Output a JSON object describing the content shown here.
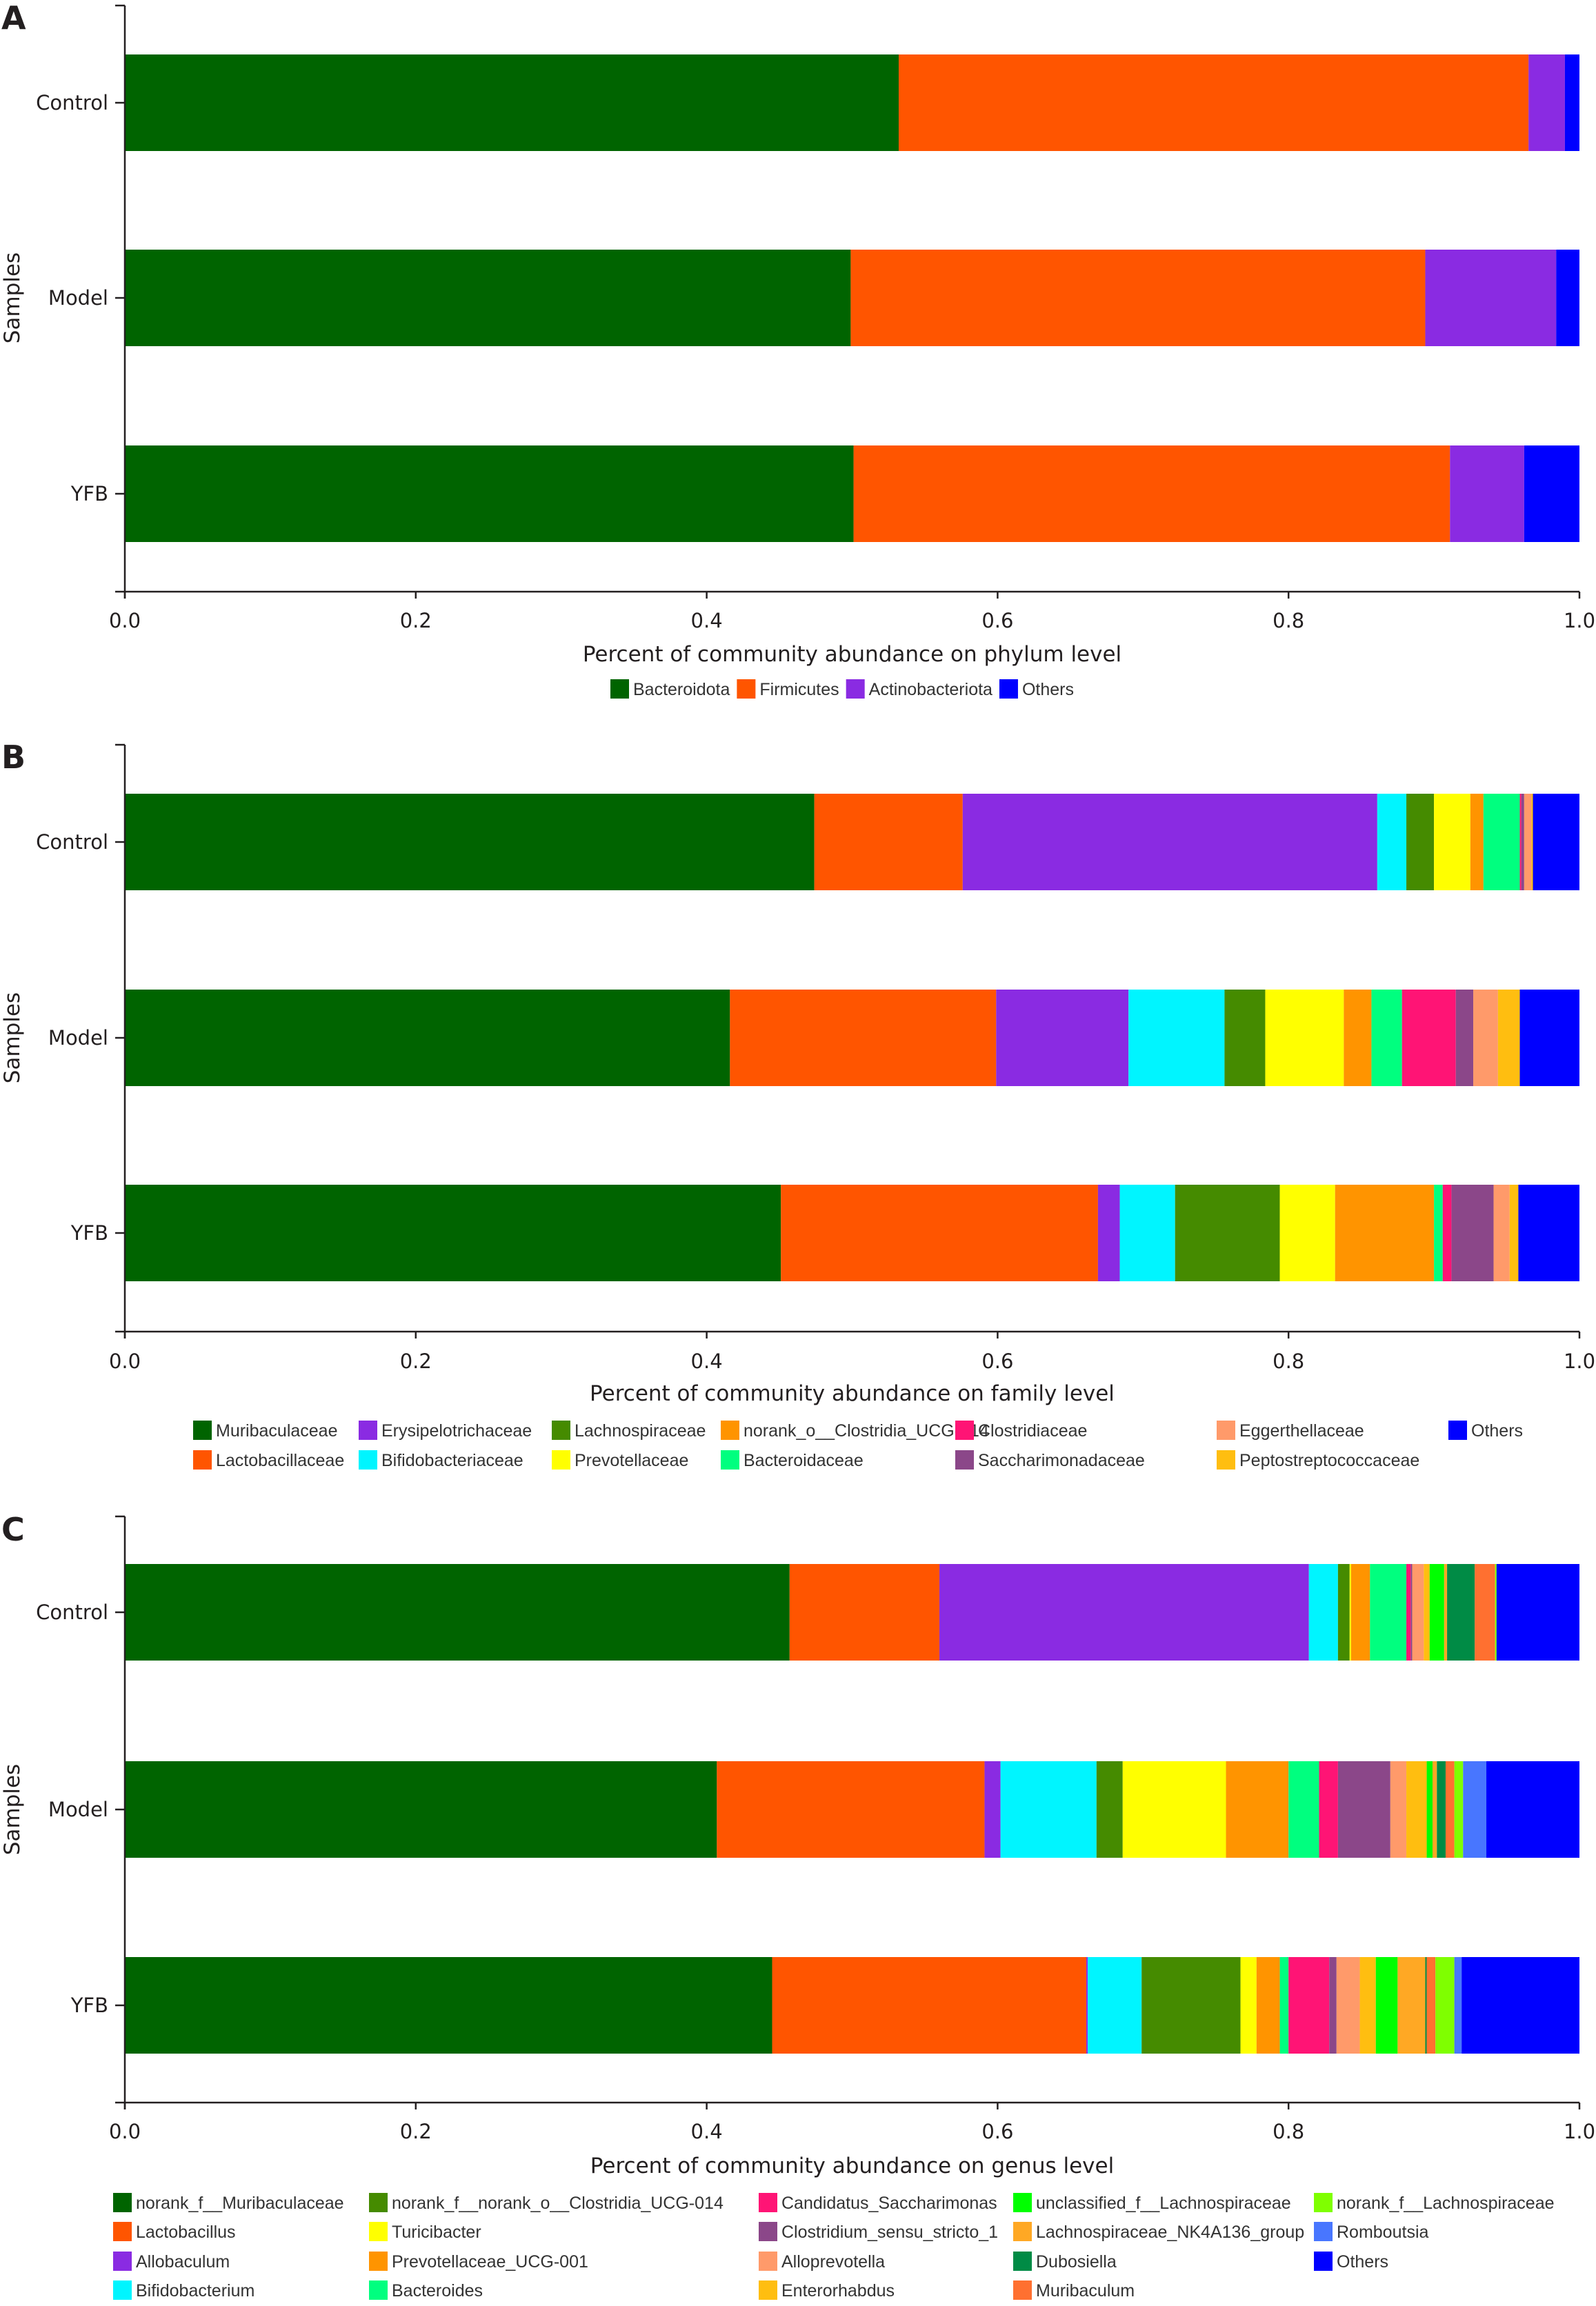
{
  "figure": {
    "panels": [
      "A",
      "B",
      "C"
    ]
  },
  "chart_data": [
    {
      "type": "bar",
      "orientation": "horizontal",
      "stacked": true,
      "panel_label": "A",
      "title": "",
      "xlabel": "Percent of community abundance on phylum level",
      "ylabel": "Samples",
      "xlim": [
        0.0,
        1.0
      ],
      "xticks": [
        "0.0",
        "0.2",
        "0.4",
        "0.6",
        "0.8",
        "1.0"
      ],
      "categories": [
        "Control",
        "Model",
        "YFB"
      ],
      "legend_placement": "bottom",
      "legend_columns": 4,
      "series": [
        {
          "name": "Bacteroidota",
          "color": "#006400",
          "values": [
            0.532,
            0.499,
            0.501
          ]
        },
        {
          "name": "Firmicutes",
          "color": "#ff5500",
          "values": [
            0.433,
            0.395,
            0.41
          ]
        },
        {
          "name": "Actinobacteriota",
          "color": "#8a2be2",
          "values": [
            0.025,
            0.09,
            0.051
          ]
        },
        {
          "name": "Others",
          "color": "#0000ff",
          "values": [
            0.01,
            0.016,
            0.038
          ]
        }
      ]
    },
    {
      "type": "bar",
      "orientation": "horizontal",
      "stacked": true,
      "panel_label": "B",
      "title": "",
      "xlabel": "Percent of community abundance on family level",
      "ylabel": "Samples",
      "xlim": [
        0.0,
        1.0
      ],
      "xticks": [
        "0.0",
        "0.2",
        "0.4",
        "0.6",
        "0.8",
        "1.0"
      ],
      "categories": [
        "Control",
        "Model",
        "YFB"
      ],
      "legend_placement": "bottom",
      "legend_columns": 7,
      "series": [
        {
          "name": "Muribaculaceae",
          "color": "#006400",
          "values": [
            0.474,
            0.416,
            0.451
          ]
        },
        {
          "name": "Lactobacillaceae",
          "color": "#ff5500",
          "values": [
            0.102,
            0.183,
            0.218
          ]
        },
        {
          "name": "Erysipelotrichaceae",
          "color": "#8a2be2",
          "values": [
            0.285,
            0.091,
            0.015
          ]
        },
        {
          "name": "Bifidobacteriaceae",
          "color": "#00f5ff",
          "values": [
            0.02,
            0.066,
            0.038
          ]
        },
        {
          "name": "Lachnospiraceae",
          "color": "#458b00",
          "values": [
            0.019,
            0.028,
            0.072
          ]
        },
        {
          "name": "Prevotellaceae",
          "color": "#ffff00",
          "values": [
            0.025,
            0.054,
            0.038
          ]
        },
        {
          "name": "norank_o__Clostridia_UCG-014",
          "color": "#ff9400",
          "values": [
            0.009,
            0.019,
            0.068
          ]
        },
        {
          "name": "Bacteroidaceae",
          "color": "#00ff7f",
          "values": [
            0.025,
            0.021,
            0.006
          ]
        },
        {
          "name": "Clostridiaceae",
          "color": "#ff1475",
          "values": [
            0.001,
            0.037,
            0.006
          ]
        },
        {
          "name": "Saccharimonadaceae",
          "color": "#8b4789",
          "values": [
            0.002,
            0.012,
            0.029
          ]
        },
        {
          "name": "Eggerthellaceae",
          "color": "#ff9a6a",
          "values": [
            0.005,
            0.017,
            0.011
          ]
        },
        {
          "name": "Peptostreptococcaceae",
          "color": "#ffbe10",
          "values": [
            0.001,
            0.015,
            0.006
          ]
        },
        {
          "name": "Others",
          "color": "#0000ff",
          "values": [
            0.032,
            0.041,
            0.042
          ]
        }
      ]
    },
    {
      "type": "bar",
      "orientation": "horizontal",
      "stacked": true,
      "panel_label": "C",
      "title": "",
      "xlabel": "Percent of community abundance on genus level",
      "ylabel": "Samples",
      "xlim": [
        0.0,
        1.0
      ],
      "xticks": [
        "0.0",
        "0.2",
        "0.4",
        "0.6",
        "0.8",
        "1.0"
      ],
      "categories": [
        "Control",
        "Model",
        "YFB"
      ],
      "legend_placement": "bottom",
      "legend_columns": 5,
      "series": [
        {
          "name": "norank_f__Muribaculaceae",
          "color": "#006400",
          "values": [
            0.457,
            0.407,
            0.445
          ]
        },
        {
          "name": "Lactobacillus",
          "color": "#ff5500",
          "values": [
            0.103,
            0.184,
            0.216
          ]
        },
        {
          "name": "Allobaculum",
          "color": "#8a2be2",
          "values": [
            0.254,
            0.011,
            0.001
          ]
        },
        {
          "name": "Bifidobacterium",
          "color": "#00f5ff",
          "values": [
            0.02,
            0.066,
            0.037
          ]
        },
        {
          "name": "norank_f__norank_o__Clostridia_UCG-014",
          "color": "#458b00",
          "values": [
            0.008,
            0.018,
            0.068
          ]
        },
        {
          "name": "Turicibacter",
          "color": "#ffff00",
          "values": [
            0.001,
            0.071,
            0.011
          ]
        },
        {
          "name": "Prevotellaceae_UCG-001",
          "color": "#ff9400",
          "values": [
            0.013,
            0.043,
            0.016
          ]
        },
        {
          "name": "Bacteroides",
          "color": "#00ff7f",
          "values": [
            0.025,
            0.021,
            0.006
          ]
        },
        {
          "name": "Candidatus_Saccharimonas",
          "color": "#ff1475",
          "values": [
            0.003,
            0.013,
            0.028
          ]
        },
        {
          "name": "Clostridium_sensu_stricto_1",
          "color": "#8b4789",
          "values": [
            0.001,
            0.036,
            0.005
          ]
        },
        {
          "name": "Alloprevotella",
          "color": "#ff9a6a",
          "values": [
            0.008,
            0.011,
            0.016
          ]
        },
        {
          "name": "Enterorhabdus",
          "color": "#ffbe10",
          "values": [
            0.004,
            0.014,
            0.011
          ]
        },
        {
          "name": "unclassified_f__Lachnospiraceae",
          "color": "#00ff00",
          "values": [
            0.01,
            0.004,
            0.015
          ]
        },
        {
          "name": "Lachnospiraceae_NK4A136_group",
          "color": "#ffa824",
          "values": [
            0.002,
            0.003,
            0.019
          ]
        },
        {
          "name": "Dubosiella",
          "color": "#008b45",
          "values": [
            0.019,
            0.006,
            0.001
          ]
        },
        {
          "name": "Muribaculum",
          "color": "#ff7030",
          "values": [
            0.014,
            0.006,
            0.006
          ]
        },
        {
          "name": "norank_f__Lachnospiraceae",
          "color": "#7fff00",
          "values": [
            0.001,
            0.006,
            0.013
          ]
        },
        {
          "name": "Romboutsia",
          "color": "#4876ff",
          "values": [
            0.0,
            0.016,
            0.005
          ]
        },
        {
          "name": "Others",
          "color": "#0000ff",
          "values": [
            0.057,
            0.064,
            0.081
          ]
        }
      ],
      "legend_order": [
        "norank_f__Muribaculaceae",
        "norank_f__norank_o__Clostridia_UCG-014",
        "Candidatus_Saccharimonas",
        "unclassified_f__Lachnospiraceae",
        "norank_f__Lachnospiraceae",
        "Lactobacillus",
        "Turicibacter",
        "Clostridium_sensu_stricto_1",
        "Lachnospiraceae_NK4A136_group",
        "Romboutsia",
        "Allobaculum",
        "Prevotellaceae_UCG-001",
        "Alloprevotella",
        "Dubosiella",
        "Others",
        "Bifidobacterium",
        "Bacteroides",
        "Enterorhabdus",
        "Muribaculum"
      ]
    }
  ]
}
